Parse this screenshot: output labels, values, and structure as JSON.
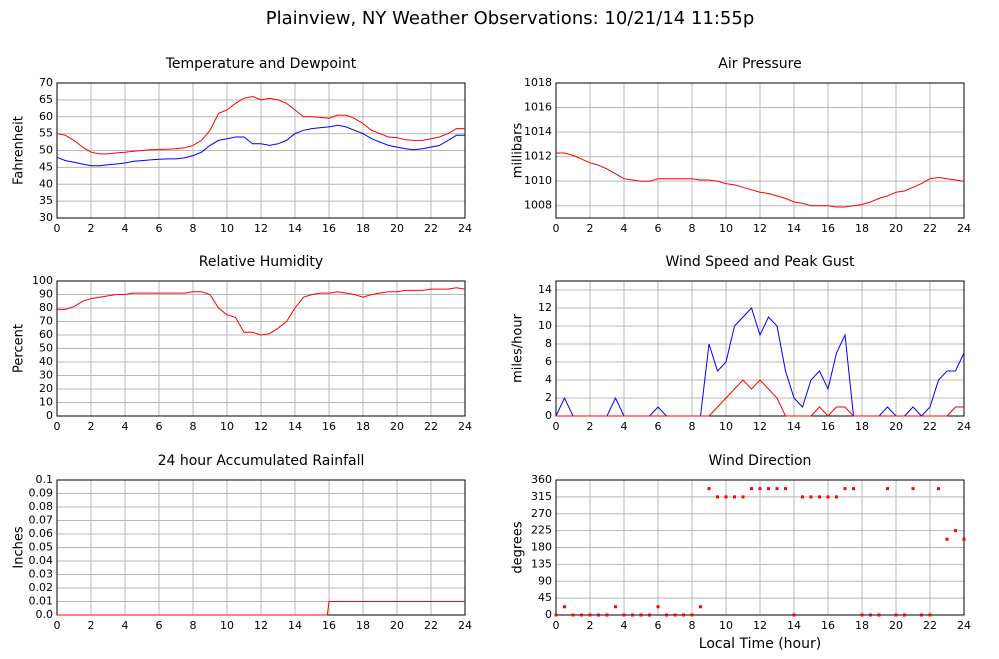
{
  "title": "Plainview, NY Weather Observations: 10/21/14 11:55p",
  "chart_data": [
    {
      "type": "line",
      "title": "Temperature and Dewpoint",
      "ylabel": "Fahrenheit",
      "x": [
        0,
        0.5,
        1,
        1.5,
        2,
        2.5,
        3,
        3.5,
        4,
        4.5,
        5,
        5.5,
        6,
        6.5,
        7,
        7.5,
        8,
        8.5,
        9,
        9.5,
        10,
        10.5,
        11,
        11.5,
        12,
        12.5,
        13,
        13.5,
        14,
        14.5,
        15,
        15.5,
        16,
        16.5,
        17,
        17.5,
        18,
        18.5,
        19,
        19.5,
        20,
        20.5,
        21,
        21.5,
        22,
        22.5,
        23,
        23.5,
        24
      ],
      "series": [
        {
          "color": "#ff0000",
          "values": [
            55,
            54.5,
            53,
            51,
            49.5,
            49,
            49,
            49.3,
            49.5,
            49.8,
            50,
            50.2,
            50.3,
            50.4,
            50.5,
            50.8,
            51.5,
            53,
            56,
            61,
            62,
            64,
            65.5,
            66,
            65,
            65.5,
            65,
            64,
            62,
            60,
            60,
            59.8,
            59.5,
            60.5,
            60.5,
            59.5,
            58,
            56,
            55,
            54,
            53.8,
            53.2,
            53,
            53,
            53.5,
            54,
            55,
            56.5,
            56.5
          ]
        },
        {
          "color": "#0000ff",
          "values": [
            48,
            47,
            46.5,
            46,
            45.5,
            45.5,
            45.8,
            46,
            46.3,
            46.8,
            47,
            47.2,
            47.4,
            47.5,
            47.5,
            47.8,
            48.5,
            49.5,
            51.5,
            53,
            53.5,
            54,
            54,
            52,
            52,
            51.5,
            52,
            53,
            55,
            56,
            56.5,
            56.8,
            57,
            57.5,
            57,
            56,
            55,
            53.5,
            52.5,
            51.5,
            51,
            50.5,
            50.2,
            50.5,
            51,
            51.5,
            53,
            54.5,
            54.5
          ]
        }
      ],
      "xlim": [
        0,
        24
      ],
      "xticks": [
        0,
        2,
        4,
        6,
        8,
        10,
        12,
        14,
        16,
        18,
        20,
        22,
        24
      ],
      "ylim": [
        30,
        70
      ],
      "yticks": [
        30,
        35,
        40,
        45,
        50,
        55,
        60,
        65,
        70
      ],
      "grid": true
    },
    {
      "type": "line",
      "title": "Air Pressure",
      "ylabel": "millibars",
      "x": [
        0,
        0.5,
        1,
        1.5,
        2,
        2.5,
        3,
        3.5,
        4,
        4.5,
        5,
        5.5,
        6,
        6.5,
        7,
        7.5,
        8,
        8.5,
        9,
        9.5,
        10,
        10.5,
        11,
        11.5,
        12,
        12.5,
        13,
        13.5,
        14,
        14.5,
        15,
        15.5,
        16,
        16.5,
        17,
        17.5,
        18,
        18.5,
        19,
        19.5,
        20,
        20.5,
        21,
        21.5,
        22,
        22.5,
        23,
        23.5,
        24
      ],
      "series": [
        {
          "color": "#ff0000",
          "values": [
            1012.3,
            1012.3,
            1012.1,
            1011.8,
            1011.5,
            1011.3,
            1011,
            1010.6,
            1010.2,
            1010.1,
            1010,
            1010,
            1010.2,
            1010.2,
            1010.2,
            1010.2,
            1010.2,
            1010.1,
            1010.1,
            1010,
            1009.8,
            1009.7,
            1009.5,
            1009.3,
            1009.1,
            1009,
            1008.8,
            1008.6,
            1008.3,
            1008.2,
            1008,
            1008,
            1008,
            1007.9,
            1007.9,
            1008,
            1008.1,
            1008.3,
            1008.6,
            1008.8,
            1009.1,
            1009.2,
            1009.5,
            1009.8,
            1010.2,
            1010.3,
            1010.2,
            1010.1,
            1010
          ]
        }
      ],
      "xlim": [
        0,
        24
      ],
      "xticks": [
        0,
        2,
        4,
        6,
        8,
        10,
        12,
        14,
        16,
        18,
        20,
        22,
        24
      ],
      "ylim": [
        1007,
        1018
      ],
      "yticks": [
        1008,
        1010,
        1012,
        1014,
        1016,
        1018
      ],
      "grid": true
    },
    {
      "type": "line",
      "title": "Relative Humidity",
      "ylabel": "Percent",
      "x": [
        0,
        0.5,
        1,
        1.5,
        2,
        2.5,
        3,
        3.5,
        4,
        4.5,
        5,
        5.5,
        6,
        6.5,
        7,
        7.5,
        8,
        8.5,
        9,
        9.5,
        10,
        10.5,
        11,
        11.5,
        12,
        12.5,
        13,
        13.5,
        14,
        14.5,
        15,
        15.5,
        16,
        16.5,
        17,
        17.5,
        18,
        18.5,
        19,
        19.5,
        20,
        20.5,
        21,
        21.5,
        22,
        22.5,
        23,
        23.5,
        24
      ],
      "series": [
        {
          "color": "#ff0000",
          "values": [
            79,
            79,
            81,
            85,
            87,
            88,
            89,
            90,
            90,
            91,
            91,
            91,
            91,
            91,
            91,
            91,
            92,
            92,
            90,
            80,
            75,
            73,
            62,
            62,
            60,
            61,
            65,
            70,
            80,
            88,
            90,
            91,
            91,
            92,
            91,
            90,
            88,
            90,
            91,
            92,
            92,
            93,
            93,
            93,
            94,
            94,
            94,
            95,
            94
          ]
        }
      ],
      "xlim": [
        0,
        24
      ],
      "xticks": [
        0,
        2,
        4,
        6,
        8,
        10,
        12,
        14,
        16,
        18,
        20,
        22,
        24
      ],
      "ylim": [
        0,
        100
      ],
      "yticks": [
        0,
        10,
        20,
        30,
        40,
        50,
        60,
        70,
        80,
        90,
        100
      ],
      "grid": true
    },
    {
      "type": "line",
      "title": "Wind Speed and Peak Gust",
      "ylabel": "miles/hour",
      "x": [
        0,
        0.5,
        1,
        1.5,
        2,
        2.5,
        3,
        3.5,
        4,
        4.5,
        5,
        5.5,
        6,
        6.5,
        7,
        7.5,
        8,
        8.5,
        9,
        9.5,
        10,
        10.5,
        11,
        11.5,
        12,
        12.5,
        13,
        13.5,
        14,
        14.5,
        15,
        15.5,
        16,
        16.5,
        17,
        17.5,
        18,
        18.5,
        19,
        19.5,
        20,
        20.5,
        21,
        21.5,
        22,
        22.5,
        23,
        23.5,
        24
      ],
      "series": [
        {
          "color": "#0000ff",
          "values": [
            0,
            2,
            0,
            0,
            0,
            0,
            0,
            2,
            0,
            0,
            0,
            0,
            1,
            0,
            0,
            0,
            0,
            0,
            8,
            5,
            6,
            10,
            11,
            12,
            9,
            11,
            10,
            5,
            2,
            1,
            4,
            5,
            3,
            7,
            9,
            0,
            0,
            0,
            0,
            1,
            0,
            0,
            1,
            0,
            1,
            4,
            5,
            5,
            7
          ]
        },
        {
          "color": "#ff0000",
          "values": [
            0,
            0,
            0,
            0,
            0,
            0,
            0,
            0,
            0,
            0,
            0,
            0,
            0,
            0,
            0,
            0,
            0,
            0,
            0,
            1,
            2,
            3,
            4,
            3,
            4,
            3,
            2,
            0,
            0,
            0,
            0,
            1,
            0,
            1,
            1,
            0,
            0,
            0,
            0,
            0,
            0,
            0,
            0,
            0,
            0,
            0,
            0,
            1,
            1
          ]
        }
      ],
      "xlim": [
        0,
        24
      ],
      "xticks": [
        0,
        2,
        4,
        6,
        8,
        10,
        12,
        14,
        16,
        18,
        20,
        22,
        24
      ],
      "ylim": [
        0,
        15
      ],
      "yticks": [
        0,
        2,
        4,
        6,
        8,
        10,
        12,
        14
      ],
      "grid": true
    },
    {
      "type": "line",
      "title": "24 hour Accumulated Rainfall",
      "ylabel": "Inches",
      "x": [
        0,
        15.9,
        16,
        24
      ],
      "series": [
        {
          "color": "#ff0000",
          "values": [
            0,
            0,
            0.01,
            0.01
          ]
        }
      ],
      "xlim": [
        0,
        24
      ],
      "xticks": [
        0,
        2,
        4,
        6,
        8,
        10,
        12,
        14,
        16,
        18,
        20,
        22,
        24
      ],
      "ylim": [
        0,
        0.1
      ],
      "yticks": [
        {
          "value": 0,
          "label": "0.0"
        },
        0.01,
        0.02,
        0.03,
        0.04,
        0.05,
        0.06,
        0.07,
        0.08,
        0.09,
        0.1
      ],
      "grid": true
    },
    {
      "type": "scatter",
      "title": "Wind Direction",
      "ylabel": "degrees",
      "xlabel": "Local Time (hour)",
      "x": [
        0,
        0.5,
        1,
        1.5,
        2,
        2.5,
        3,
        3.5,
        4,
        4.5,
        5,
        5.5,
        6,
        6.5,
        7,
        7.5,
        8,
        8.5,
        9,
        9.5,
        10,
        10.5,
        11,
        11.5,
        12,
        12.5,
        13,
        13.5,
        14,
        14.5,
        15,
        15.5,
        16,
        16.5,
        17,
        17.5,
        18,
        18.5,
        19,
        19.5,
        20,
        20.5,
        21,
        21.5,
        22,
        22.5,
        23,
        23.5,
        24
      ],
      "series": [
        {
          "color": "#ff0000",
          "values": [
            0,
            22,
            0,
            0,
            0,
            0,
            0,
            22,
            0,
            0,
            0,
            0,
            22,
            0,
            0,
            0,
            0,
            22,
            337,
            315,
            315,
            315,
            315,
            337,
            337,
            337,
            337,
            337,
            0,
            315,
            315,
            315,
            315,
            315,
            337,
            337,
            0,
            0,
            0,
            337,
            0,
            0,
            337,
            0,
            0,
            337,
            202,
            225,
            202
          ]
        }
      ],
      "xlim": [
        0,
        24
      ],
      "xticks": [
        0,
        2,
        4,
        6,
        8,
        10,
        12,
        14,
        16,
        18,
        20,
        22,
        24
      ],
      "ylim": [
        0,
        360
      ],
      "yticks": [
        0,
        45,
        90,
        135,
        180,
        225,
        270,
        315,
        360
      ],
      "grid": true
    }
  ]
}
